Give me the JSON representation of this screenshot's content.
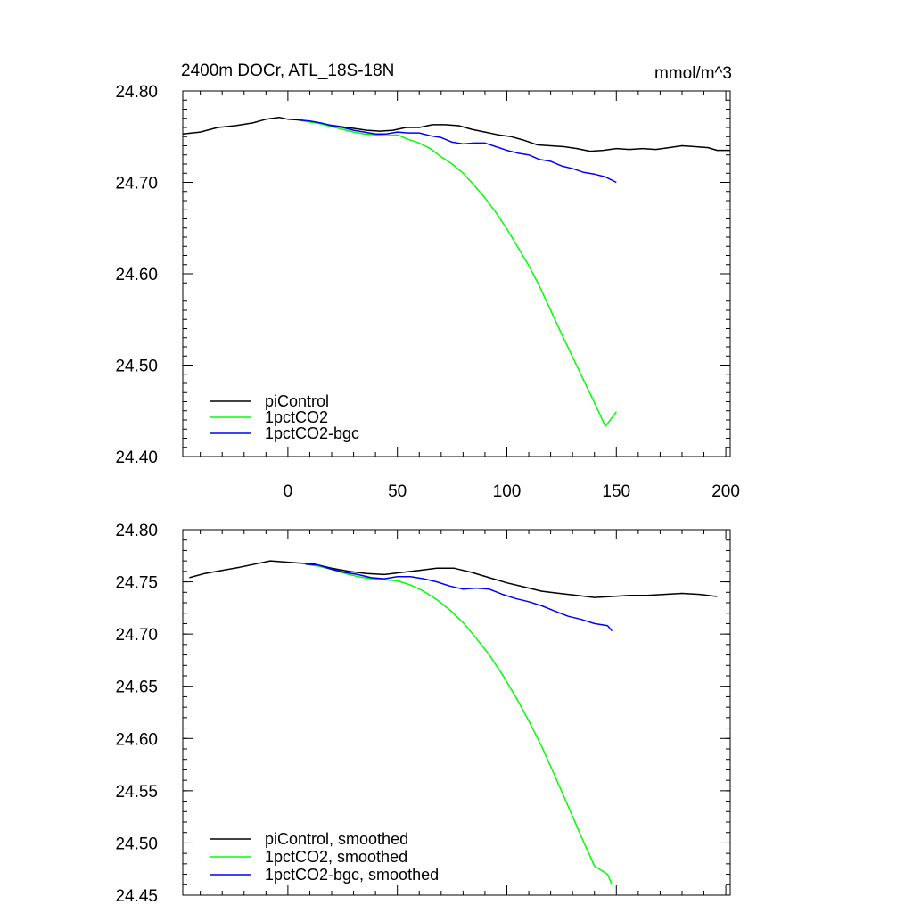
{
  "title_left": "2400m DOCr, ATL_18S-18N",
  "title_right": "mmol/m^3",
  "chart_data": [
    {
      "type": "line",
      "xlim": [
        -48,
        202
      ],
      "ylim": [
        24.4,
        24.8
      ],
      "x_ticks": [
        0,
        50,
        100,
        150,
        200
      ],
      "x_tick_labels": [
        "0",
        "50",
        "100",
        "150",
        "200"
      ],
      "y_ticks": [
        24.4,
        24.5,
        24.6,
        24.7,
        24.8
      ],
      "y_tick_labels": [
        "24.40",
        "24.50",
        "24.60",
        "24.70",
        "24.80"
      ],
      "legend_position": "bottom-left",
      "series": [
        {
          "name": "piControl",
          "color": "#000000",
          "x": [
            -48,
            -40,
            -32,
            -24,
            -16,
            -10,
            -4,
            0,
            6,
            12,
            18,
            24,
            30,
            36,
            42,
            48,
            54,
            60,
            66,
            72,
            78,
            84,
            90,
            96,
            102,
            108,
            114,
            120,
            126,
            132,
            138,
            144,
            150,
            156,
            162,
            168,
            174,
            180,
            186,
            192,
            196,
            202
          ],
          "y": [
            24.753,
            24.755,
            24.76,
            24.762,
            24.765,
            24.769,
            24.771,
            24.769,
            24.768,
            24.766,
            24.763,
            24.761,
            24.759,
            24.757,
            24.756,
            24.757,
            24.76,
            24.76,
            24.763,
            24.763,
            24.762,
            24.758,
            24.755,
            24.752,
            24.75,
            24.746,
            24.741,
            24.74,
            24.739,
            24.737,
            24.734,
            24.735,
            24.737,
            24.736,
            24.737,
            24.736,
            24.738,
            24.74,
            24.739,
            24.738,
            24.735,
            24.735
          ]
        },
        {
          "name": "1pctCO2",
          "color": "#00ff00",
          "x": [
            5,
            10,
            15,
            20,
            25,
            30,
            35,
            40,
            45,
            50,
            55,
            60,
            65,
            70,
            75,
            80,
            85,
            90,
            95,
            100,
            105,
            110,
            115,
            120,
            125,
            130,
            135,
            140,
            145,
            150
          ],
          "y": [
            24.768,
            24.766,
            24.764,
            24.761,
            24.758,
            24.755,
            24.753,
            24.752,
            24.751,
            24.752,
            24.747,
            24.743,
            24.737,
            24.728,
            24.72,
            24.71,
            24.697,
            24.683,
            24.667,
            24.649,
            24.629,
            24.609,
            24.586,
            24.56,
            24.534,
            24.509,
            24.484,
            24.459,
            24.433,
            24.449
          ]
        },
        {
          "name": "1pctCO2-bgc",
          "color": "#0000ff",
          "x": [
            5,
            10,
            15,
            20,
            25,
            30,
            35,
            40,
            45,
            50,
            55,
            60,
            65,
            70,
            75,
            80,
            85,
            90,
            95,
            100,
            105,
            110,
            115,
            120,
            125,
            130,
            135,
            140,
            145,
            150
          ],
          "y": [
            24.768,
            24.767,
            24.765,
            24.762,
            24.76,
            24.757,
            24.755,
            24.753,
            24.753,
            24.755,
            24.754,
            24.754,
            24.751,
            24.749,
            24.744,
            24.742,
            24.743,
            24.743,
            24.739,
            24.735,
            24.732,
            24.73,
            24.725,
            24.723,
            24.718,
            24.715,
            24.711,
            24.709,
            24.706,
            24.7
          ]
        }
      ]
    },
    {
      "type": "line",
      "xlim": [
        -48,
        202
      ],
      "ylim": [
        24.45,
        24.8
      ],
      "x_ticks": [
        0,
        50,
        100,
        150,
        200
      ],
      "y_ticks": [
        24.45,
        24.5,
        24.55,
        24.6,
        24.65,
        24.7,
        24.75,
        24.8
      ],
      "y_tick_labels": [
        "24.45",
        "24.50",
        "24.55",
        "24.60",
        "24.65",
        "24.70",
        "24.75",
        "24.80"
      ],
      "legend_position": "bottom-left",
      "series": [
        {
          "name": "piControl, smoothed",
          "color": "#000000",
          "x": [
            -45,
            -38,
            -30,
            -22,
            -15,
            -8,
            -2,
            5,
            12,
            20,
            28,
            36,
            44,
            52,
            60,
            68,
            76,
            84,
            92,
            100,
            108,
            116,
            124,
            132,
            140,
            148,
            156,
            164,
            172,
            180,
            188,
            196
          ],
          "y": [
            24.754,
            24.758,
            24.761,
            24.764,
            24.767,
            24.77,
            24.769,
            24.768,
            24.767,
            24.763,
            24.76,
            24.758,
            24.757,
            24.759,
            24.761,
            24.763,
            24.763,
            24.759,
            24.754,
            24.749,
            24.745,
            24.741,
            24.739,
            24.737,
            24.735,
            24.736,
            24.737,
            24.737,
            24.738,
            24.739,
            24.738,
            24.736
          ]
        },
        {
          "name": "1pctCO2, smoothed",
          "color": "#00ff00",
          "x": [
            8,
            14,
            20,
            26,
            32,
            38,
            44,
            50,
            56,
            62,
            68,
            74,
            80,
            86,
            92,
            98,
            104,
            110,
            116,
            122,
            128,
            134,
            140,
            146,
            148
          ],
          "y": [
            24.767,
            24.765,
            24.762,
            24.758,
            24.755,
            24.753,
            24.752,
            24.751,
            24.747,
            24.741,
            24.733,
            24.723,
            24.711,
            24.696,
            24.68,
            24.661,
            24.64,
            24.617,
            24.592,
            24.564,
            24.535,
            24.506,
            24.478,
            24.47,
            24.46
          ]
        },
        {
          "name": "1pctCO2-bgc, smoothed",
          "color": "#0000ff",
          "x": [
            8,
            14,
            20,
            26,
            32,
            38,
            44,
            50,
            56,
            62,
            68,
            74,
            80,
            86,
            92,
            98,
            104,
            110,
            116,
            122,
            128,
            134,
            140,
            146,
            148
          ],
          "y": [
            24.767,
            24.766,
            24.762,
            24.759,
            24.757,
            24.754,
            24.753,
            24.755,
            24.755,
            24.753,
            24.75,
            24.746,
            24.743,
            24.744,
            24.743,
            24.738,
            24.734,
            24.731,
            24.727,
            24.722,
            24.717,
            24.714,
            24.71,
            24.708,
            24.703
          ]
        }
      ]
    }
  ]
}
